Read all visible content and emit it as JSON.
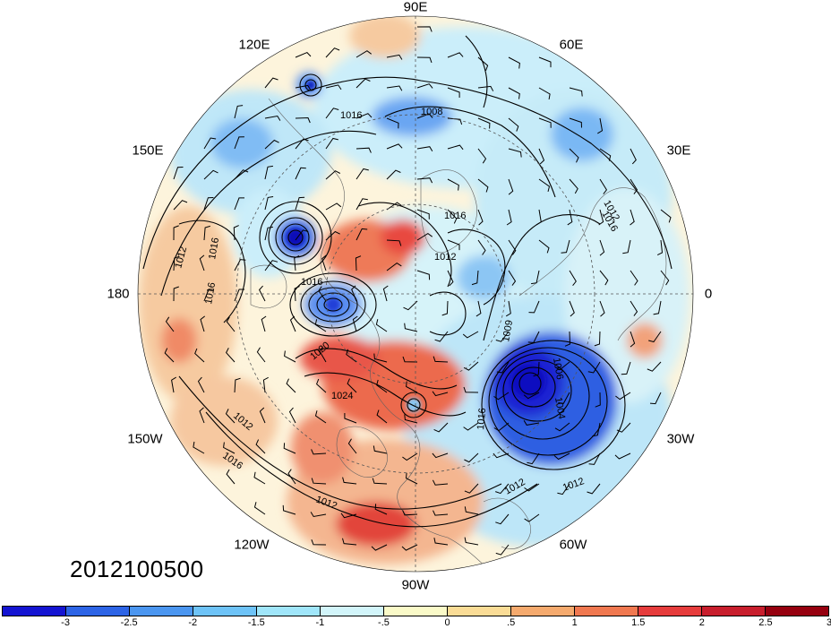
{
  "date": "2012100500",
  "lon_labels": [
    "90E",
    "60E",
    "30E",
    "0",
    "30W",
    "60W",
    "90W",
    "120W",
    "150W",
    "180",
    "150E",
    "120E"
  ],
  "contour_labels": [
    "1016",
    "1008",
    "1016",
    "1016",
    "1012",
    "1016",
    "1012",
    "1016",
    "1016",
    "1012",
    "1009",
    "1006",
    "1004",
    "1020",
    "1024",
    "1016",
    "1012",
    "1016",
    "1012",
    "1012",
    "1012"
  ],
  "colorbar": {
    "labels": [
      "-3",
      "-2.5",
      "-2",
      "-1.5",
      "-1",
      "-.5",
      "0",
      ".5",
      "1",
      "1.5",
      "2",
      "2.5",
      "3"
    ],
    "colors": [
      "#1414d2",
      "#2d64e6",
      "#4b96f0",
      "#6ec3f7",
      "#a0e6fa",
      "#d2f5fa",
      "#fafac8",
      "#fadc96",
      "#f5aa6e",
      "#f07850",
      "#e63c3c",
      "#c81e2d",
      "#96000f"
    ]
  },
  "palette": {
    "strong_negative": "#1e2ad8",
    "negative": "#4f8ff0",
    "weak_negative": "#a8dff8",
    "weak_positive": "#fbe7b8",
    "positive": "#f2a27a",
    "strong_positive": "#e03a35"
  }
}
